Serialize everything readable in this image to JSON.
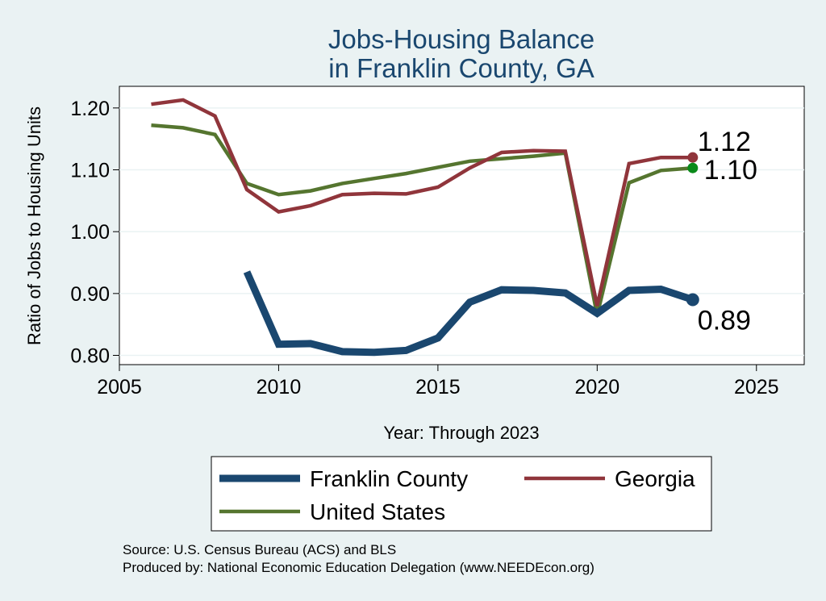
{
  "chart_data": {
    "type": "line",
    "title": [
      "Jobs-Housing Balance",
      "in Franklin County, GA"
    ],
    "xlabel": "Year: Through 2023",
    "ylabel": "Ratio of Jobs to Housing Units",
    "xlim": [
      2005,
      2026.5
    ],
    "ylim": [
      0.785,
      1.235
    ],
    "xticks": [
      2005,
      2010,
      2015,
      2020,
      2025
    ],
    "yticks": [
      0.8,
      0.9,
      1.0,
      1.1,
      1.2
    ],
    "ytick_labels": [
      "0.80",
      "0.90",
      "1.00",
      "1.10",
      "1.20"
    ],
    "grid": true,
    "series": [
      {
        "name": "Franklin County",
        "color": "#1a476f",
        "x": [
          2009,
          2010,
          2011,
          2012,
          2013,
          2014,
          2015,
          2016,
          2017,
          2018,
          2019,
          2020,
          2021,
          2022,
          2023
        ],
        "values": [
          0.935,
          0.818,
          0.819,
          0.806,
          0.805,
          0.808,
          0.828,
          0.886,
          0.906,
          0.905,
          0.901,
          0.868,
          0.905,
          0.907,
          0.89
        ],
        "end_label": "0.89"
      },
      {
        "name": "Georgia",
        "color": "#90353b",
        "x": [
          2006,
          2007,
          2008,
          2009,
          2010,
          2011,
          2012,
          2013,
          2014,
          2015,
          2016,
          2017,
          2018,
          2019,
          2020,
          2021,
          2022,
          2023
        ],
        "values": [
          1.206,
          1.213,
          1.187,
          1.068,
          1.032,
          1.042,
          1.06,
          1.062,
          1.061,
          1.072,
          1.103,
          1.128,
          1.131,
          1.13,
          0.88,
          1.11,
          1.12,
          1.12
        ],
        "end_label": "1.12"
      },
      {
        "name": "United States",
        "color": "#55752f",
        "x": [
          2006,
          2007,
          2008,
          2009,
          2010,
          2011,
          2012,
          2013,
          2014,
          2015,
          2016,
          2017,
          2018,
          2019,
          2020,
          2021,
          2022,
          2023
        ],
        "values": [
          1.172,
          1.168,
          1.157,
          1.078,
          1.06,
          1.066,
          1.078,
          1.086,
          1.094,
          1.104,
          1.114,
          1.118,
          1.122,
          1.127,
          0.865,
          1.079,
          1.099,
          1.103
        ],
        "end_label": "1.10",
        "end_marker_color": "#0a8a1a"
      }
    ],
    "legend": [
      "Franklin County",
      "Georgia",
      "United States"
    ],
    "legend_position": "bottom"
  },
  "notes": {
    "source": "Source: U.S. Census Bureau (ACS) and BLS",
    "producer": "Produced by: National Economic Education Delegation (www.NEEDEcon.org)"
  }
}
